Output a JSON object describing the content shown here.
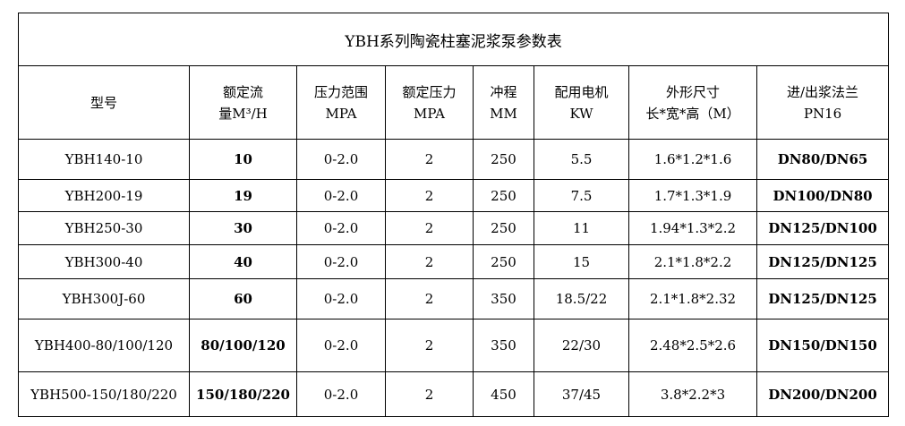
{
  "title": "YBH系列陶瓷柱塞泥浆泵参数表",
  "headers": [
    [
      "型号",
      ""
    ],
    [
      "额定流",
      "量M³/H"
    ],
    [
      "压力范围",
      "MPA"
    ],
    [
      "额定压力",
      "MPA"
    ],
    [
      "冲程",
      "MM"
    ],
    [
      "配用电机",
      "KW"
    ],
    [
      "外形尺寸",
      "长*宽*高（M）"
    ],
    [
      "进/出浆法兰",
      "PN16"
    ]
  ],
  "rows": [
    [
      "YBH140-10",
      "10",
      "0-2.0",
      "2",
      "250",
      "5.5",
      "1.6*1.2*1.6",
      "DN80/DN65"
    ],
    [
      "YBH200-19",
      "19",
      "0-2.0",
      "2",
      "250",
      "7.5",
      "1.7*1.3*1.9",
      "DN100/DN80"
    ],
    [
      "YBH250-30",
      "30",
      "0-2.0",
      "2",
      "250",
      "11",
      "1.94*1.3*2.2",
      "DN125/DN100"
    ],
    [
      "YBH300-40",
      "40",
      "0-2.0",
      "2",
      "250",
      "15",
      "2.1*1.8*2.2",
      "DN125/DN125"
    ],
    [
      "YBH300J-60",
      "60",
      "0-2.0",
      "2",
      "350",
      "18.5/22",
      "2.1*1.8*2.32",
      "DN125/DN125"
    ],
    [
      "YBH400-80/100/120",
      "80/100/120",
      "0-2.0",
      "2",
      "350",
      "22/30",
      "2.48*2.5*2.6",
      "DN150/DN150"
    ],
    [
      "YBH500-150/180/220",
      "150/180/220",
      "0-2.0",
      "2",
      "450",
      "37/45",
      "3.8*2.2*3",
      "DN200/DN200"
    ]
  ]
}
